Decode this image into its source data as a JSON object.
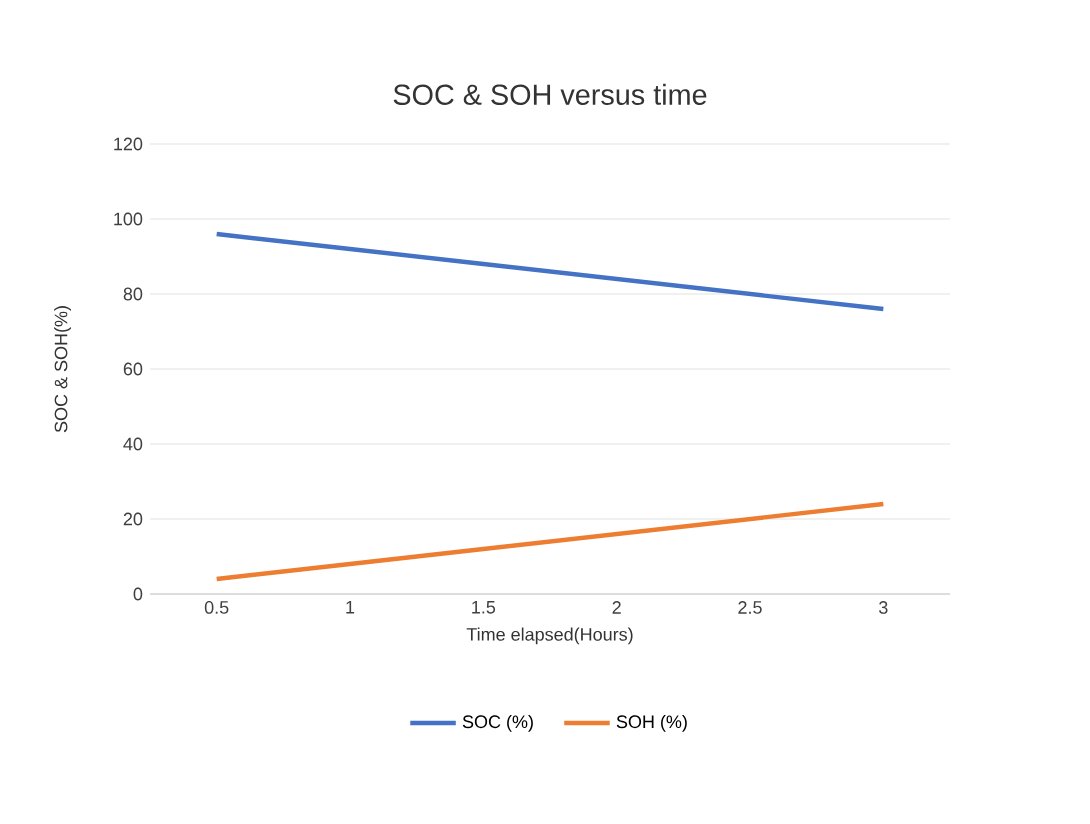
{
  "chart_data": {
    "type": "line",
    "title": "SOC & SOH versus time",
    "xlabel": "Time elapsed(Hours)",
    "ylabel": "SOC & SOH(%)",
    "categories": [
      "0.5",
      "1",
      "1.5",
      "2",
      "2.5",
      "3"
    ],
    "series": [
      {
        "name": "SOC (%)",
        "color": "#4472c4",
        "values": [
          96,
          92,
          88,
          84,
          80,
          76
        ]
      },
      {
        "name": "SOH (%)",
        "color": "#ed7d31",
        "values": [
          4,
          8,
          12,
          16,
          20,
          24
        ]
      }
    ],
    "ylim": [
      0,
      120
    ],
    "yticks": [
      0,
      20,
      40,
      60,
      80,
      100,
      120
    ],
    "grid": "y",
    "legend": "bottom",
    "marker": "none",
    "line_style": "solid"
  }
}
